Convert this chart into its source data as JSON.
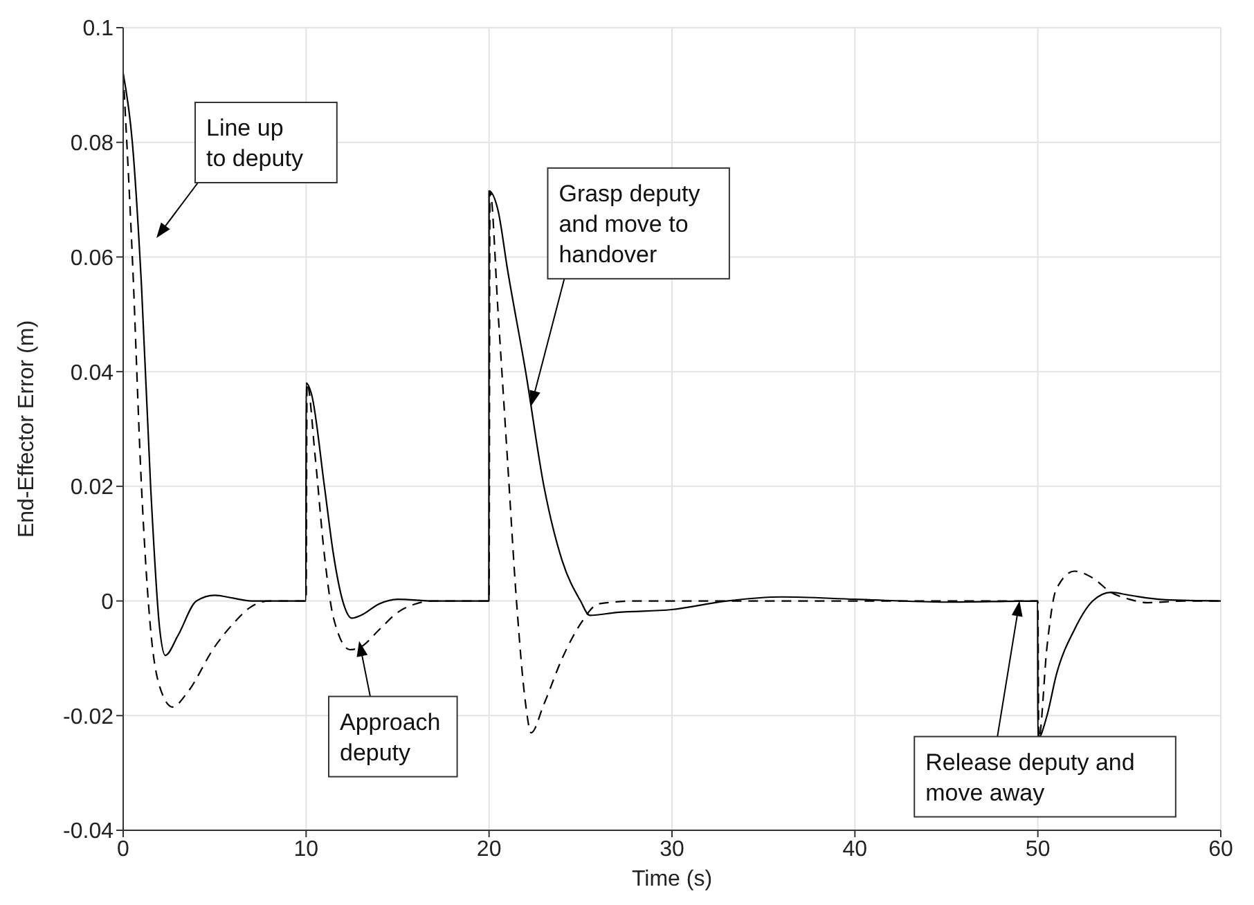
{
  "chart_data": {
    "type": "line",
    "xlabel": "Time (s)",
    "ylabel": "End-Effector Error (m)",
    "xlim": [
      0,
      60
    ],
    "xticks": [
      0,
      10,
      20,
      30,
      40,
      50,
      60
    ],
    "ylim": [
      -0.04,
      0.1
    ],
    "yticks": [
      -0.04,
      -0.02,
      0,
      0.02,
      0.04,
      0.06,
      0.08,
      0.1
    ],
    "grid": true,
    "marker": "none",
    "series": [
      {
        "color": "#000000",
        "line_style": "solid",
        "x": [
          0,
          0.5,
          1,
          1.5,
          2,
          2.3,
          3,
          4,
          5,
          6,
          7,
          9.99,
          10,
          10.3,
          11,
          11.5,
          12,
          12.5,
          13,
          14,
          15,
          17,
          19.99,
          20,
          20.5,
          21,
          22,
          23,
          24,
          25,
          25.5,
          27,
          30,
          33,
          36,
          40,
          45,
          49.99,
          50,
          50.5,
          51,
          52,
          53,
          54,
          55,
          57,
          60
        ],
        "values": [
          0.092,
          0.08,
          0.055,
          0.02,
          -0.005,
          -0.0095,
          -0.006,
          0,
          0.001,
          0.0005,
          0,
          0,
          0.038,
          0.036,
          0.02,
          0.008,
          0,
          -0.003,
          -0.0025,
          -0.0005,
          0.0003,
          0,
          0,
          0.0715,
          0.068,
          0.058,
          0.04,
          0.02,
          0.007,
          0,
          -0.0025,
          -0.002,
          -0.0015,
          0,
          0.0007,
          0.0003,
          -0.0002,
          0,
          -0.024,
          -0.02,
          -0.013,
          -0.005,
          0,
          0.0015,
          0.001,
          0.0002,
          0
        ]
      },
      {
        "color": "#000000",
        "line_style": "dashed",
        "x": [
          0,
          0.5,
          1,
          1.5,
          2,
          2.7,
          3.5,
          5,
          6,
          7,
          8,
          10,
          10.05,
          10.5,
          11,
          11.5,
          12.4,
          13,
          14,
          15,
          16,
          17,
          20,
          20.05,
          20.5,
          21,
          21.5,
          22,
          22.3,
          23,
          24,
          25,
          26,
          28,
          50,
          50.05,
          50.5,
          51,
          52,
          53,
          54,
          55,
          56,
          58,
          60
        ],
        "values": [
          0.092,
          0.06,
          0.02,
          -0.005,
          -0.015,
          -0.0185,
          -0.016,
          -0.008,
          -0.004,
          -0.001,
          0,
          0,
          0.038,
          0.025,
          0.008,
          -0.003,
          -0.0085,
          -0.008,
          -0.005,
          -0.002,
          -0.0005,
          0,
          0,
          0.0715,
          0.05,
          0.025,
          0,
          -0.018,
          -0.023,
          -0.018,
          -0.01,
          -0.004,
          -0.0005,
          0,
          0,
          -0.024,
          -0.008,
          0.002,
          0.0052,
          0.004,
          0.0015,
          0.0003,
          -0.0003,
          0,
          0
        ]
      }
    ],
    "annotations": [
      "Line up to deputy",
      {
        "text": "Approach deputy",
        "x": 12.9,
        "y": -0.007
      },
      {
        "text": "Grasp deputy and move to handover",
        "x": 22.3,
        "y": 0.034
      },
      {
        "text": "Release deputy and move away",
        "x": 49,
        "y": 0
      }
    ]
  }
}
